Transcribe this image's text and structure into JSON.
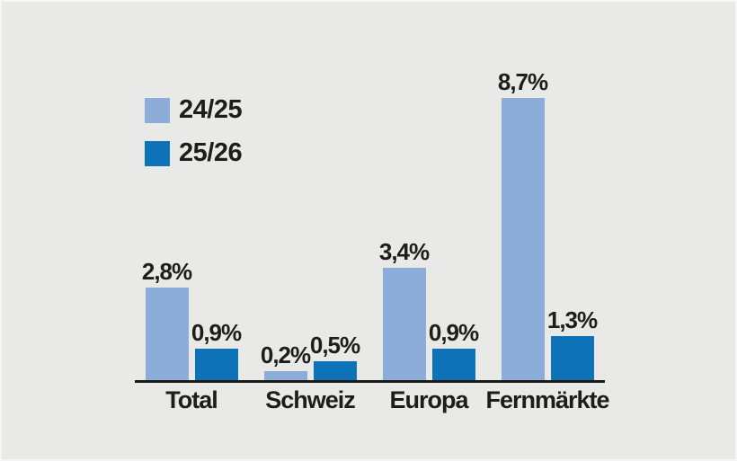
{
  "background_color": "#e9e9e8",
  "text_color": "#1d1d1b",
  "axis_color": "#1a1a18",
  "legend": {
    "items": [
      {
        "label": "24/25",
        "color": "#8badd8"
      },
      {
        "label": "25/26",
        "color": "#0e72b8"
      }
    ]
  },
  "chart_data": {
    "type": "bar",
    "title": "",
    "xlabel": "",
    "ylabel": "",
    "categories": [
      "Total",
      "Schweiz",
      "Europa",
      "Fernmärkte"
    ],
    "series": [
      {
        "name": "24/25",
        "color": "#8badd8",
        "values": [
          2.8,
          0.2,
          3.4,
          8.7
        ],
        "value_labels": [
          "2,8%",
          "0,2%",
          "3,4%",
          "8,7%"
        ]
      },
      {
        "name": "25/26",
        "color": "#0e72b8",
        "values": [
          0.9,
          0.5,
          0.9,
          1.3
        ],
        "value_labels": [
          "0,9%",
          "0,5%",
          "0,9%",
          "1,3%"
        ]
      }
    ],
    "ylim": [
      0,
      9
    ],
    "grid": false,
    "y_axis_visible": false,
    "legend_position": "top-left",
    "value_label_format": "german-decimal-percent"
  }
}
